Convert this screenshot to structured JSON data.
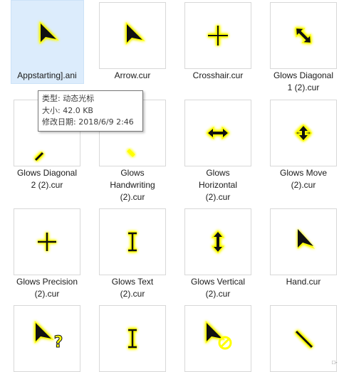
{
  "files": [
    {
      "name": "Appstarting].ani",
      "lines": [
        "Appstarting].ani"
      ],
      "icon": "arrow-cursor-icon",
      "selected": true
    },
    {
      "name": "Arrow.cur",
      "lines": [
        "Arrow.cur"
      ],
      "icon": "arrow-cursor-icon"
    },
    {
      "name": "Crosshair.cur",
      "lines": [
        "Crosshair.cur"
      ],
      "icon": "crosshair-cursor-icon"
    },
    {
      "name": "Glows Diagonal 1 (2).cur",
      "lines": [
        "Glows Diagonal",
        "1 (2).cur"
      ],
      "icon": "diagonal-resize-1-icon"
    },
    {
      "name": "Glows Diagonal 2 (2).cur",
      "lines": [
        "Glows Diagonal",
        "2 (2).cur"
      ],
      "icon": "diagonal-resize-2-icon"
    },
    {
      "name": "Glows Handwriting (2).cur",
      "lines": [
        "Glows",
        "Handwriting",
        "(2).cur"
      ],
      "icon": "handwriting-cursor-icon"
    },
    {
      "name": "Glows Horizontal (2).cur",
      "lines": [
        "Glows",
        "Horizontal",
        "(2).cur"
      ],
      "icon": "horizontal-resize-icon"
    },
    {
      "name": "Glows Move (2).cur",
      "lines": [
        "Glows Move",
        "(2).cur"
      ],
      "icon": "move-cursor-icon"
    },
    {
      "name": "Glows Precision (2).cur",
      "lines": [
        "Glows Precision",
        "(2).cur"
      ],
      "icon": "precision-cursor-icon"
    },
    {
      "name": "Glows Text (2).cur",
      "lines": [
        "Glows Text",
        "(2).cur"
      ],
      "icon": "text-cursor-icon"
    },
    {
      "name": "Glows Vertical (2).cur",
      "lines": [
        "Glows Vertical",
        "(2).cur"
      ],
      "icon": "vertical-resize-icon"
    },
    {
      "name": "Hand.cur",
      "lines": [
        "Hand.cur"
      ],
      "icon": "hand-cursor-icon"
    },
    {
      "name": "",
      "lines": [],
      "icon": "help-cursor-icon"
    },
    {
      "name": "",
      "lines": [],
      "icon": "text-cursor-icon"
    },
    {
      "name": "",
      "lines": [],
      "icon": "unavailable-cursor-icon"
    },
    {
      "name": "",
      "lines": [],
      "icon": "pen-cursor-icon"
    }
  ],
  "tooltip": {
    "type": "类型: 动态光标",
    "size": "大小: 42.0 KB",
    "modified": "修改日期: 2018/6/9 2:46"
  },
  "corner_text": "□-",
  "colors": {
    "selection": "#dcecfc",
    "glow": "#ffff00",
    "cursor": "#111111"
  }
}
